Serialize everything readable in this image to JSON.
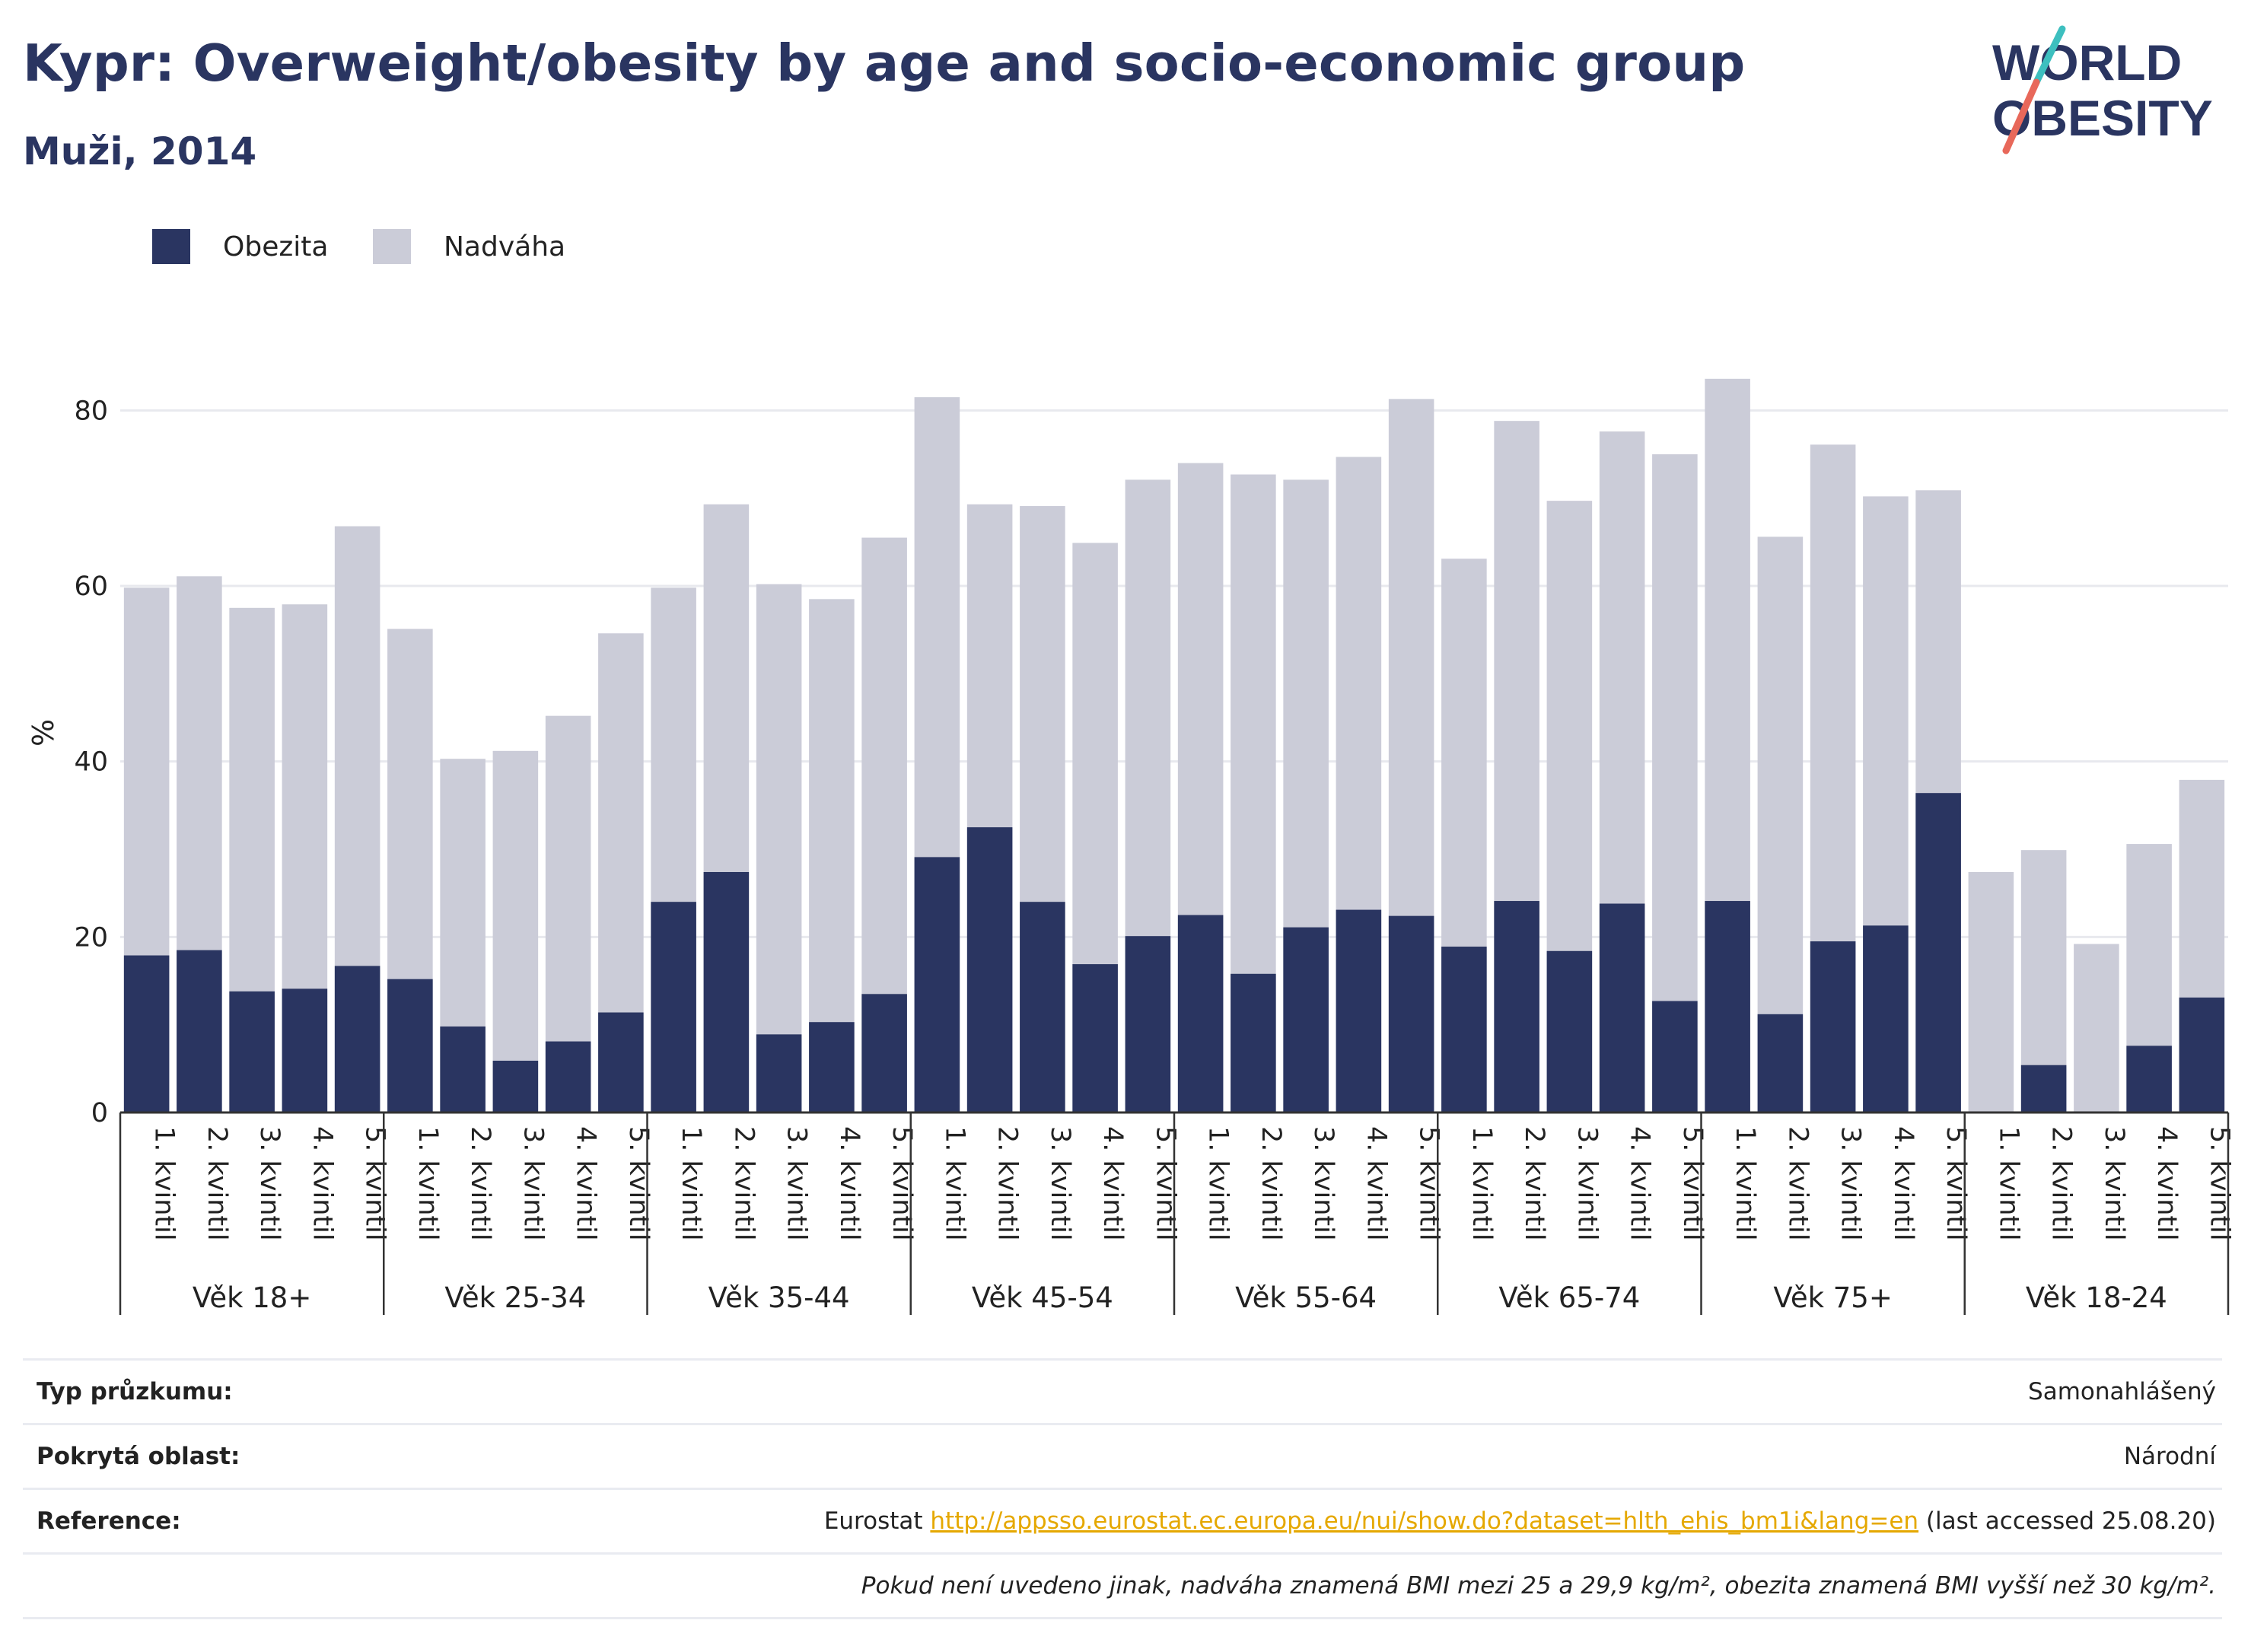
{
  "header": {
    "title": "Kypr: Overweight/obesity by age and socio-economic group",
    "subtitle": "Muži, 2014"
  },
  "logo": {
    "line1": "WORLD",
    "line2": "OBESITY"
  },
  "colors": {
    "obesity": "#2a3561",
    "overweight": "#cbccd8",
    "accent_teal": "#3dbfbf",
    "accent_red": "#e8685a",
    "link": "#e5a800"
  },
  "legend": [
    {
      "label": "Obezita",
      "color": "#2a3561"
    },
    {
      "label": "Nadváha",
      "color": "#cbccd8"
    }
  ],
  "chart_data": {
    "type": "bar",
    "stacking": "overlay",
    "ylabel": "%",
    "ylim": [
      0,
      90
    ],
    "yticks": [
      0,
      20,
      40,
      60,
      80
    ],
    "grid": true,
    "legend_position": "top-left",
    "groups": [
      {
        "label": "Věk 18+",
        "categories": [
          "1. kvintil",
          "2. kvintil",
          "3. kvintil",
          "4. kvintil",
          "5. kvintil"
        ],
        "obesity": [
          17.9,
          18.5,
          13.8,
          14.1,
          16.7
        ],
        "overweight_total": [
          59.8,
          61.1,
          57.5,
          57.9,
          66.8
        ]
      },
      {
        "label": "Věk 25-34",
        "categories": [
          "1. kvintil",
          "2. kvintil",
          "3. kvintil",
          "4. kvintil",
          "5. kvintil"
        ],
        "obesity": [
          15.2,
          9.8,
          5.9,
          8.1,
          11.4
        ],
        "overweight_total": [
          55.1,
          40.3,
          41.2,
          45.2,
          54.6
        ]
      },
      {
        "label": "Věk 35-44",
        "categories": [
          "1. kvintil",
          "2. kvintil",
          "3. kvintil",
          "4. kvintil",
          "5. kvintil"
        ],
        "obesity": [
          24.0,
          27.4,
          8.9,
          10.3,
          13.5
        ],
        "overweight_total": [
          59.8,
          69.3,
          60.2,
          58.5,
          65.5
        ]
      },
      {
        "label": "Věk 45-54",
        "categories": [
          "1. kvintil",
          "2. kvintil",
          "3. kvintil",
          "4. kvintil",
          "5. kvintil"
        ],
        "obesity": [
          29.1,
          32.5,
          24.0,
          16.9,
          20.1
        ],
        "overweight_total": [
          81.5,
          69.3,
          69.1,
          64.9,
          72.1
        ]
      },
      {
        "label": "Věk 55-64",
        "categories": [
          "1. kvintil",
          "2. kvintil",
          "3. kvintil",
          "4. kvintil",
          "5. kvintil"
        ],
        "obesity": [
          22.5,
          15.8,
          21.1,
          23.1,
          22.4
        ],
        "overweight_total": [
          74.0,
          72.7,
          72.1,
          74.7,
          81.3
        ]
      },
      {
        "label": "Věk 65-74",
        "categories": [
          "1. kvintil",
          "2. kvintil",
          "3. kvintil",
          "4. kvintil",
          "5. kvintil"
        ],
        "obesity": [
          18.9,
          24.1,
          18.4,
          23.8,
          12.7
        ],
        "overweight_total": [
          63.1,
          78.8,
          69.7,
          77.6,
          75.0
        ]
      },
      {
        "label": "Věk 75+",
        "categories": [
          "1. kvintil",
          "2. kvintil",
          "3. kvintil",
          "4. kvintil",
          "5. kvintil"
        ],
        "obesity": [
          24.1,
          11.2,
          19.5,
          21.3,
          36.4
        ],
        "overweight_total": [
          83.6,
          65.6,
          76.1,
          70.2,
          70.9
        ]
      },
      {
        "label": "Věk 18-24",
        "categories": [
          "1. kvintil",
          "2. kvintil",
          "3. kvintil",
          "4. kvintil",
          "5. kvintil"
        ],
        "obesity": [
          0,
          5.4,
          0,
          7.6,
          13.1
        ],
        "overweight_total": [
          27.4,
          29.9,
          19.2,
          30.6,
          37.9
        ]
      }
    ]
  },
  "info": {
    "survey_label": "Typ průzkumu:",
    "survey_value": "Samonahlášený",
    "area_label": "Pokrytá oblast:",
    "area_value": "Národní",
    "reference_label": "Reference:",
    "reference_prefix": "Eurostat ",
    "reference_link": "http://appsso.eurostat.ec.europa.eu/nui/show.do?dataset=hlth_ehis_bm1i&lang=en",
    "reference_suffix": " (last accessed 25.08.20)",
    "note": "Pokud není uvedeno jinak, nadváha znamená BMI mezi 25 a 29,9 kg/m², obezita znamená BMI vyšší než 30 kg/m²."
  }
}
